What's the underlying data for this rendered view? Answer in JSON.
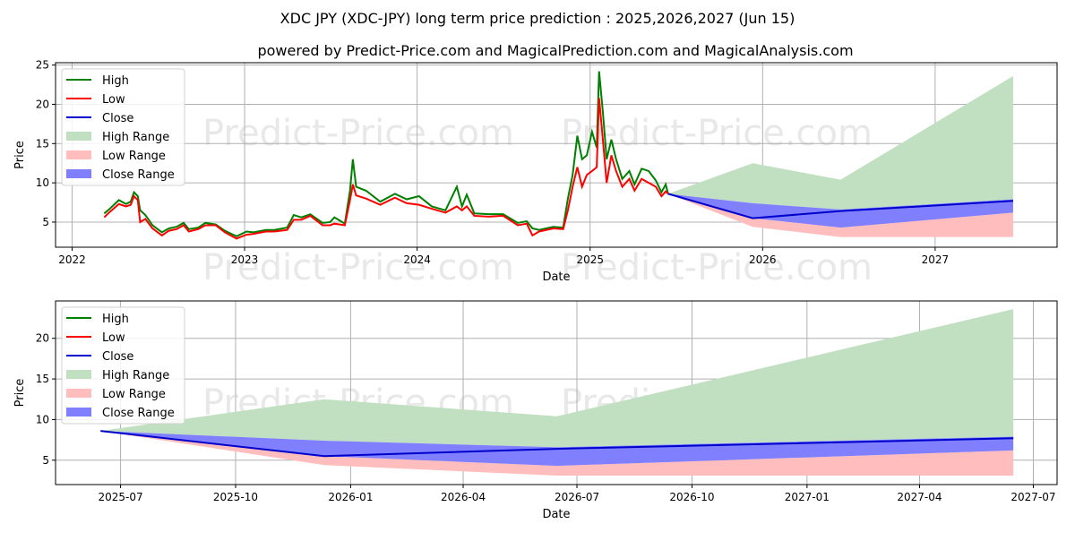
{
  "title": "XDC JPY (XDC-JPY) long term price prediction : 2025,2026,2027 (Jun 15)",
  "subtitle": "powered by Predict-Price.com and MagicalPrediction.com and MagicalAnalysis.com",
  "watermark": "Predict-Price.com",
  "colors": {
    "high": "#008000",
    "low": "#ff0000",
    "close": "#0000cc",
    "high_range": "#c1e0c1",
    "low_range": "#ffbdbd",
    "close_range": "#8080ff"
  },
  "chart_data": [
    {
      "type": "line",
      "xlabel": "Date",
      "ylabel": "Price",
      "xlim": [
        "2021-11-27",
        "2027-09-16"
      ],
      "ylim": [
        1.8,
        25.3
      ],
      "xticks": [
        {
          "date": "2022-01-01",
          "label": "2022"
        },
        {
          "date": "2023-01-01",
          "label": "2023"
        },
        {
          "date": "2024-01-01",
          "label": "2024"
        },
        {
          "date": "2025-01-01",
          "label": "2025"
        },
        {
          "date": "2026-01-01",
          "label": "2026"
        },
        {
          "date": "2027-01-01",
          "label": "2027"
        }
      ],
      "yticks": [
        5,
        10,
        15,
        20,
        25
      ],
      "grid": true,
      "legend": {
        "placement": "top-left",
        "entries": [
          "High",
          "Low",
          "Close",
          "High Range",
          "Low Range",
          "Close Range"
        ]
      },
      "history": {
        "dates": [
          "2022-03-10",
          "2022-03-20",
          "2022-04-10",
          "2022-04-25",
          "2022-05-05",
          "2022-05-12",
          "2022-05-20",
          "2022-05-25",
          "2022-06-05",
          "2022-06-20",
          "2022-07-10",
          "2022-07-25",
          "2022-08-10",
          "2022-08-25",
          "2022-09-05",
          "2022-09-25",
          "2022-10-10",
          "2022-11-01",
          "2022-11-20",
          "2022-12-15",
          "2023-01-05",
          "2023-01-20",
          "2023-02-15",
          "2023-03-05",
          "2023-04-01",
          "2023-04-15",
          "2023-05-01",
          "2023-05-20",
          "2023-06-15",
          "2023-07-01",
          "2023-07-10",
          "2023-08-01",
          "2023-08-12",
          "2023-08-18",
          "2023-08-25",
          "2023-09-15",
          "2023-10-15",
          "2023-11-15",
          "2023-12-10",
          "2024-01-05",
          "2024-02-01",
          "2024-03-01",
          "2024-03-25",
          "2024-04-05",
          "2024-04-15",
          "2024-05-01",
          "2024-06-01",
          "2024-07-01",
          "2024-08-01",
          "2024-08-20",
          "2024-09-01",
          "2024-09-15",
          "2024-10-15",
          "2024-11-05",
          "2024-11-15",
          "2024-11-25",
          "2024-12-05",
          "2024-12-15",
          "2024-12-25",
          "2025-01-05",
          "2025-01-15",
          "2025-01-20",
          "2025-01-28",
          "2025-02-05",
          "2025-02-15",
          "2025-02-25",
          "2025-03-10",
          "2025-03-25",
          "2025-04-05",
          "2025-04-20",
          "2025-05-05",
          "2025-05-20",
          "2025-06-01",
          "2025-06-10",
          "2025-06-15"
        ],
        "high": [
          6.1,
          6.6,
          7.8,
          7.3,
          7.6,
          8.8,
          8.3,
          6.5,
          5.9,
          4.6,
          3.7,
          4.2,
          4.4,
          4.9,
          4.1,
          4.3,
          4.9,
          4.7,
          3.9,
          3.2,
          3.8,
          3.7,
          4.0,
          4.0,
          4.3,
          5.9,
          5.6,
          6.0,
          4.9,
          5.0,
          5.6,
          4.8,
          9.0,
          13.0,
          9.5,
          9.0,
          7.6,
          8.6,
          7.9,
          8.3,
          7.0,
          6.5,
          9.5,
          7.0,
          8.5,
          6.1,
          6.0,
          6.0,
          4.9,
          5.1,
          4.2,
          4.0,
          4.4,
          4.3,
          8.0,
          11.0,
          16.0,
          13.0,
          13.5,
          16.5,
          14.5,
          24.2,
          19.0,
          13.0,
          15.5,
          13.0,
          10.5,
          11.5,
          9.8,
          11.8,
          11.5,
          10.3,
          8.8,
          9.8,
          8.6
        ],
        "low": [
          5.6,
          6.2,
          7.3,
          7.0,
          7.2,
          8.3,
          7.8,
          5.0,
          5.4,
          4.2,
          3.3,
          3.9,
          4.1,
          4.6,
          3.8,
          4.1,
          4.6,
          4.6,
          3.7,
          2.9,
          3.4,
          3.5,
          3.8,
          3.8,
          4.0,
          5.3,
          5.3,
          5.8,
          4.6,
          4.6,
          4.8,
          4.6,
          7.8,
          9.8,
          8.4,
          8.0,
          7.2,
          8.1,
          7.4,
          7.2,
          6.7,
          6.2,
          7.0,
          6.5,
          7.0,
          5.8,
          5.7,
          5.8,
          4.6,
          4.8,
          3.3,
          3.8,
          4.2,
          4.1,
          6.5,
          9.5,
          12.0,
          9.5,
          11.0,
          11.5,
          12.0,
          20.8,
          15.5,
          10.0,
          13.5,
          11.5,
          9.5,
          10.5,
          9.0,
          10.5,
          10.0,
          9.5,
          8.3,
          8.9,
          8.6
        ]
      },
      "prediction": {
        "dates": [
          "2025-06-15",
          "2025-12-11",
          "2026-06-15",
          "2027-06-15"
        ],
        "close": [
          8.6,
          5.5,
          6.4,
          7.7
        ],
        "high_range": {
          "upper": [
            8.6,
            12.5,
            10.4,
            23.6
          ],
          "lower": [
            8.6,
            7.4,
            6.6,
            7.9
          ]
        },
        "close_range": {
          "upper": [
            8.6,
            7.4,
            6.6,
            7.9
          ],
          "lower": [
            8.6,
            5.5,
            4.3,
            6.2
          ]
        },
        "low_range": {
          "upper": [
            8.6,
            5.5,
            4.3,
            6.2
          ],
          "lower": [
            8.6,
            4.4,
            3.1,
            3.1
          ]
        }
      }
    },
    {
      "type": "line",
      "xlabel": "Date",
      "ylabel": "Price",
      "xlim": [
        "2025-05-10",
        "2027-07-20"
      ],
      "ylim": [
        2.0,
        24.6
      ],
      "xticks": [
        {
          "date": "2025-07-01",
          "label": "2025-07"
        },
        {
          "date": "2025-10-01",
          "label": "2025-10"
        },
        {
          "date": "2026-01-01",
          "label": "2026-01"
        },
        {
          "date": "2026-04-01",
          "label": "2026-04"
        },
        {
          "date": "2026-07-01",
          "label": "2026-07"
        },
        {
          "date": "2026-10-01",
          "label": "2026-10"
        },
        {
          "date": "2027-01-01",
          "label": "2027-01"
        },
        {
          "date": "2027-04-01",
          "label": "2027-04"
        },
        {
          "date": "2027-07-01",
          "label": "2027-07"
        }
      ],
      "yticks": [
        5,
        10,
        15,
        20
      ],
      "grid": true,
      "legend": {
        "placement": "top-left",
        "entries": [
          "High",
          "Low",
          "Close",
          "High Range",
          "Low Range",
          "Close Range"
        ]
      },
      "prediction_ref": "same as chart 1 prediction"
    }
  ]
}
